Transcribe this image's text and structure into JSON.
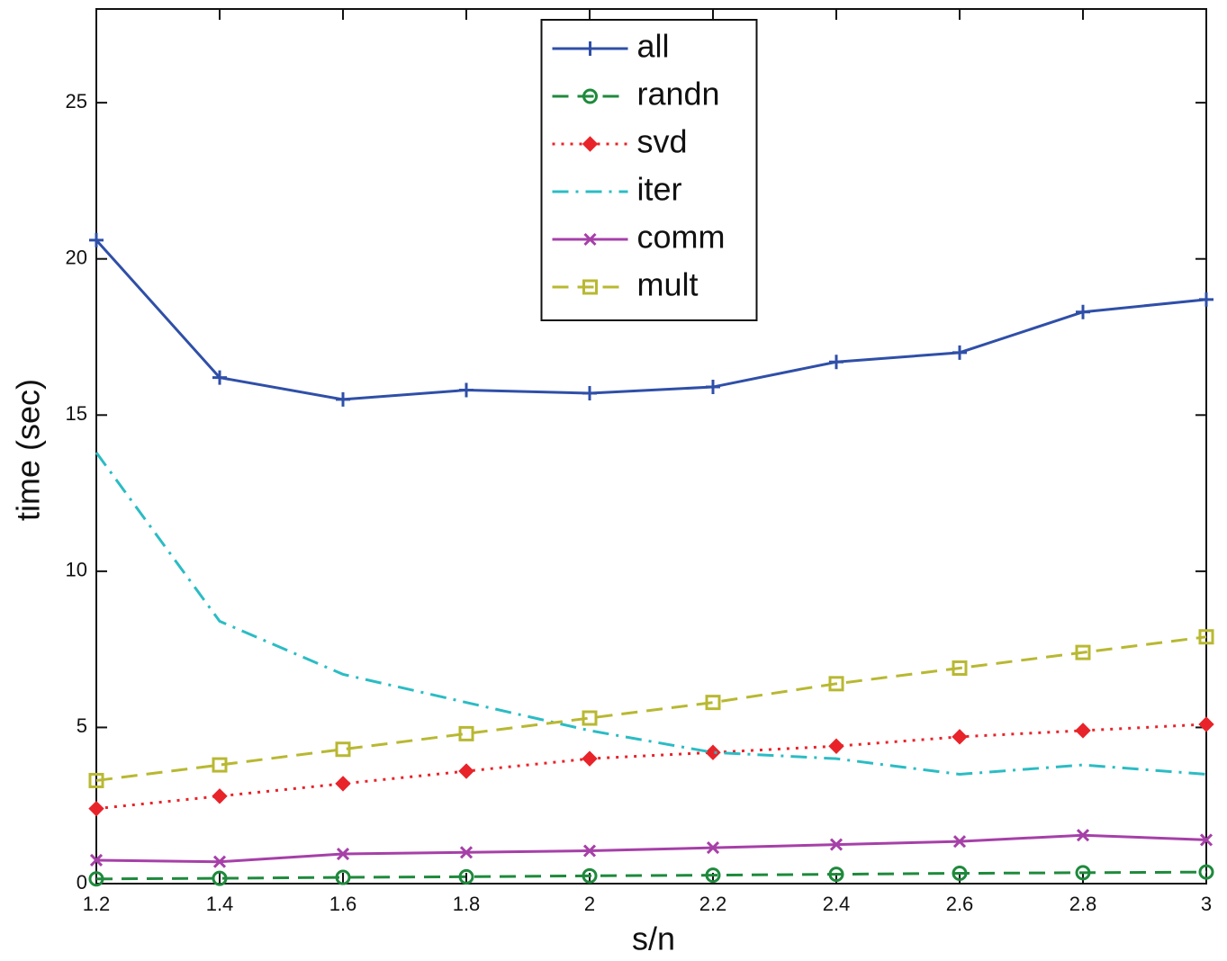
{
  "chart_data": {
    "type": "line",
    "xlabel": "s/n",
    "ylabel": "time (sec)",
    "x": [
      1.2,
      1.4,
      1.6,
      1.8,
      2,
      2.2,
      2.4,
      2.6,
      2.8,
      3
    ],
    "xlim": [
      1.2,
      3
    ],
    "xticks": [
      1.2,
      1.4,
      1.6,
      1.8,
      2,
      2.2,
      2.4,
      2.6,
      2.8,
      3
    ],
    "ylim": [
      0,
      28
    ],
    "yticks": [
      0,
      5,
      10,
      15,
      20,
      25
    ],
    "legend": "upper center",
    "series": [
      {
        "name": "all",
        "color": "#2f4fa8",
        "dash": "solid",
        "marker": "plus",
        "values": [
          20.6,
          16.2,
          15.5,
          15.8,
          15.7,
          15.9,
          16.7,
          17.0,
          18.3,
          18.7
        ]
      },
      {
        "name": "randn",
        "color": "#1e8a3c",
        "dash": "dashed",
        "marker": "circle",
        "values": [
          0.15,
          0.17,
          0.2,
          0.22,
          0.25,
          0.27,
          0.3,
          0.33,
          0.35,
          0.37
        ]
      },
      {
        "name": "svd",
        "color": "#e8242a",
        "dash": "dotted",
        "marker": "diamond",
        "values": [
          2.4,
          2.8,
          3.2,
          3.6,
          4.0,
          4.2,
          4.4,
          4.7,
          4.9,
          5.1
        ]
      },
      {
        "name": "iter",
        "color": "#2bbcc4",
        "dash": "dashdot",
        "marker": "none",
        "values": [
          13.8,
          8.4,
          6.7,
          5.8,
          4.9,
          4.2,
          4.0,
          3.5,
          3.8,
          3.5
        ]
      },
      {
        "name": "comm",
        "color": "#a640a8",
        "dash": "solid",
        "marker": "x",
        "values": [
          0.75,
          0.7,
          0.95,
          1.0,
          1.05,
          1.15,
          1.25,
          1.35,
          1.55,
          1.4
        ]
      },
      {
        "name": "mult",
        "color": "#b8b832",
        "dash": "dashed",
        "marker": "square",
        "values": [
          3.3,
          3.8,
          4.3,
          4.8,
          5.3,
          5.8,
          6.4,
          6.9,
          7.4,
          7.9
        ]
      }
    ]
  }
}
